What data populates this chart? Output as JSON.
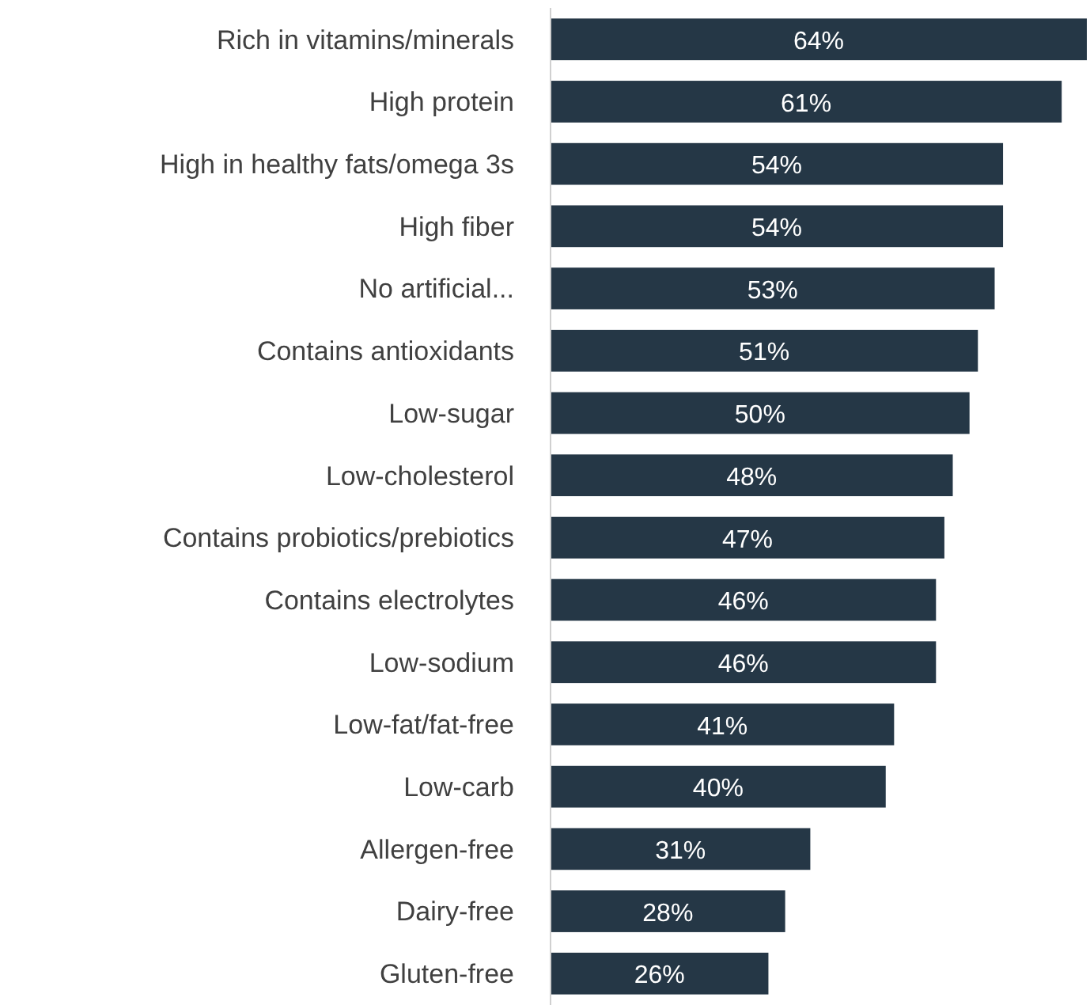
{
  "chart_data": {
    "type": "bar",
    "orientation": "horizontal",
    "categories": [
      "Rich in vitamins/minerals",
      "High protein",
      "High in healthy fats/omega 3s",
      "High fiber",
      "No artificial...",
      "Contains antioxidants",
      "Low-sugar",
      "Low-cholesterol",
      "Contains probiotics/prebiotics",
      "Contains electrolytes",
      "Low-sodium",
      "Low-fat/fat-free",
      "Low-carb",
      "Allergen-free",
      "Dairy-free",
      "Gluten-free"
    ],
    "values": [
      64,
      61,
      54,
      54,
      53,
      51,
      50,
      48,
      47,
      46,
      46,
      41,
      40,
      31,
      28,
      26
    ],
    "value_labels": [
      "64%",
      "61%",
      "54%",
      "54%",
      "53%",
      "51%",
      "50%",
      "48%",
      "47%",
      "46%",
      "46%",
      "41%",
      "40%",
      "31%",
      "28%",
      "26%"
    ],
    "color": "#253746"
  }
}
